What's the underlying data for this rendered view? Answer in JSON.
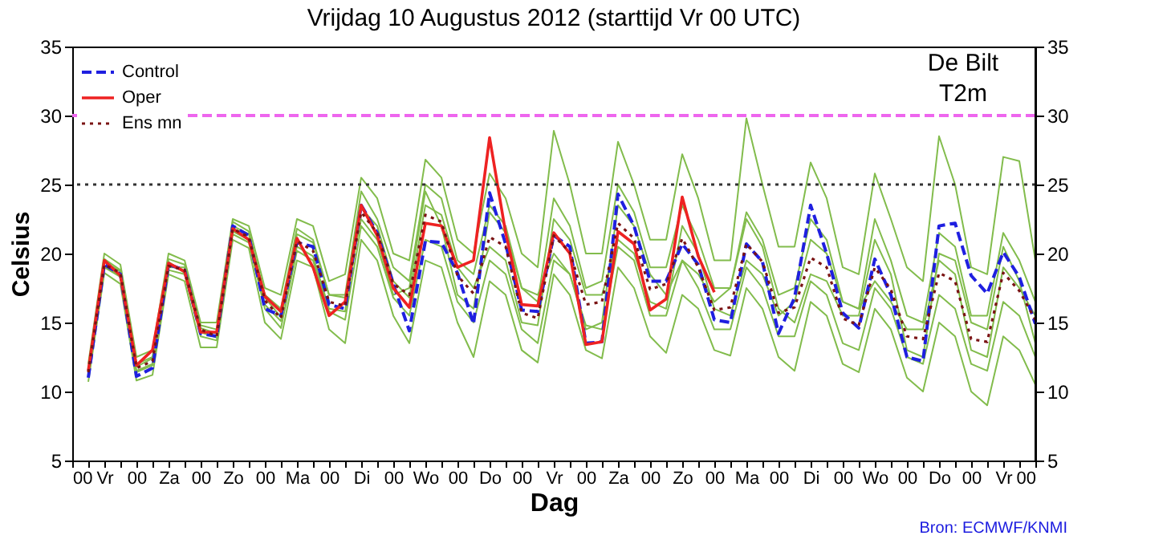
{
  "chart_data": {
    "type": "line",
    "title": "Vrijdag 10 Augustus 2012 (starttijd Vr 00 UTC)",
    "xlabel": "Dag",
    "ylabel": "Celsius",
    "annotations": [
      "De Bilt",
      "T2m",
      "Bron: ECMWF/KNMI"
    ],
    "x": [
      "2012-08-10T06:00",
      "2012-08-10T12:00",
      "2012-08-10T18:00",
      "2012-08-11T00:00",
      "2012-08-11T06:00",
      "2012-08-11T12:00",
      "2012-08-11T18:00",
      "2012-08-12T00:00",
      "2012-08-12T06:00",
      "2012-08-12T12:00",
      "2012-08-12T18:00",
      "2012-08-13T00:00",
      "2012-08-13T06:00",
      "2012-08-13T12:00",
      "2012-08-13T18:00",
      "2012-08-14T00:00",
      "2012-08-14T06:00",
      "2012-08-14T12:00",
      "2012-08-14T18:00",
      "2012-08-15T00:00",
      "2012-08-15T06:00",
      "2012-08-15T12:00",
      "2012-08-15T18:00",
      "2012-08-16T00:00",
      "2012-08-16T06:00",
      "2012-08-16T12:00",
      "2012-08-16T18:00",
      "2012-08-17T00:00",
      "2012-08-17T06:00",
      "2012-08-17T12:00",
      "2012-08-17T18:00",
      "2012-08-18T00:00",
      "2012-08-18T06:00",
      "2012-08-18T12:00",
      "2012-08-18T18:00",
      "2012-08-19T00:00",
      "2012-08-19T06:00",
      "2012-08-19T12:00",
      "2012-08-19T18:00",
      "2012-08-20T00:00",
      "2012-08-20T06:00",
      "2012-08-20T12:00",
      "2012-08-20T18:00",
      "2012-08-21T00:00",
      "2012-08-21T06:00",
      "2012-08-21T12:00",
      "2012-08-21T18:00",
      "2012-08-22T00:00",
      "2012-08-22T06:00",
      "2012-08-22T12:00",
      "2012-08-22T18:00",
      "2012-08-23T00:00",
      "2012-08-23T06:00",
      "2012-08-23T12:00",
      "2012-08-23T18:00",
      "2012-08-24T00:00",
      "2012-08-24T06:00",
      "2012-08-24T12:00",
      "2012-08-24T18:00",
      "2012-08-25T00:00"
    ],
    "xlim": [
      "2012-08-10T00:00",
      "2012-08-25T00:00"
    ],
    "xticks": [
      {
        "value": "2012-08-10T00:00",
        "label": "00"
      },
      {
        "value": "2012-08-10T06:00",
        "label": null
      },
      {
        "value": "2012-08-10T12:00",
        "label": "Vr"
      },
      {
        "value": "2012-08-10T18:00",
        "label": null
      },
      {
        "value": "2012-08-11T00:00",
        "label": "00"
      },
      {
        "value": "2012-08-11T06:00",
        "label": null
      },
      {
        "value": "2012-08-11T12:00",
        "label": "Za"
      },
      {
        "value": "2012-08-11T18:00",
        "label": null
      },
      {
        "value": "2012-08-12T00:00",
        "label": "00"
      },
      {
        "value": "2012-08-12T06:00",
        "label": null
      },
      {
        "value": "2012-08-12T12:00",
        "label": "Zo"
      },
      {
        "value": "2012-08-12T18:00",
        "label": null
      },
      {
        "value": "2012-08-13T00:00",
        "label": "00"
      },
      {
        "value": "2012-08-13T06:00",
        "label": null
      },
      {
        "value": "2012-08-13T12:00",
        "label": "Ma"
      },
      {
        "value": "2012-08-13T18:00",
        "label": null
      },
      {
        "value": "2012-08-14T00:00",
        "label": "00"
      },
      {
        "value": "2012-08-14T06:00",
        "label": null
      },
      {
        "value": "2012-08-14T12:00",
        "label": "Di"
      },
      {
        "value": "2012-08-14T18:00",
        "label": null
      },
      {
        "value": "2012-08-15T00:00",
        "label": "00"
      },
      {
        "value": "2012-08-15T06:00",
        "label": null
      },
      {
        "value": "2012-08-15T12:00",
        "label": "Wo"
      },
      {
        "value": "2012-08-15T18:00",
        "label": null
      },
      {
        "value": "2012-08-16T00:00",
        "label": "00"
      },
      {
        "value": "2012-08-16T06:00",
        "label": null
      },
      {
        "value": "2012-08-16T12:00",
        "label": "Do"
      },
      {
        "value": "2012-08-16T18:00",
        "label": null
      },
      {
        "value": "2012-08-17T00:00",
        "label": "00"
      },
      {
        "value": "2012-08-17T06:00",
        "label": null
      },
      {
        "value": "2012-08-17T12:00",
        "label": "Vr"
      },
      {
        "value": "2012-08-17T18:00",
        "label": null
      },
      {
        "value": "2012-08-18T00:00",
        "label": "00"
      },
      {
        "value": "2012-08-18T06:00",
        "label": null
      },
      {
        "value": "2012-08-18T12:00",
        "label": "Za"
      },
      {
        "value": "2012-08-18T18:00",
        "label": null
      },
      {
        "value": "2012-08-19T00:00",
        "label": "00"
      },
      {
        "value": "2012-08-19T06:00",
        "label": null
      },
      {
        "value": "2012-08-19T12:00",
        "label": "Zo"
      },
      {
        "value": "2012-08-19T18:00",
        "label": null
      },
      {
        "value": "2012-08-20T00:00",
        "label": "00"
      },
      {
        "value": "2012-08-20T06:00",
        "label": null
      },
      {
        "value": "2012-08-20T12:00",
        "label": "Ma"
      },
      {
        "value": "2012-08-20T18:00",
        "label": null
      },
      {
        "value": "2012-08-21T00:00",
        "label": "00"
      },
      {
        "value": "2012-08-21T06:00",
        "label": null
      },
      {
        "value": "2012-08-21T12:00",
        "label": "Di"
      },
      {
        "value": "2012-08-21T18:00",
        "label": null
      },
      {
        "value": "2012-08-22T00:00",
        "label": "00"
      },
      {
        "value": "2012-08-22T06:00",
        "label": null
      },
      {
        "value": "2012-08-22T12:00",
        "label": "Wo"
      },
      {
        "value": "2012-08-22T18:00",
        "label": null
      },
      {
        "value": "2012-08-23T00:00",
        "label": "00"
      },
      {
        "value": "2012-08-23T06:00",
        "label": null
      },
      {
        "value": "2012-08-23T12:00",
        "label": "Do"
      },
      {
        "value": "2012-08-23T18:00",
        "label": null
      },
      {
        "value": "2012-08-24T00:00",
        "label": "00"
      },
      {
        "value": "2012-08-24T06:00",
        "label": null
      },
      {
        "value": "2012-08-24T12:00",
        "label": "Vr"
      },
      {
        "value": "2012-08-24T18:00",
        "label": null
      },
      {
        "value": "2012-08-25T00:00",
        "label": "00"
      }
    ],
    "ylim": [
      5,
      35
    ],
    "yticks": [
      5,
      10,
      15,
      20,
      25,
      30,
      35
    ],
    "y2lim": [
      5,
      35
    ],
    "y2ticks": [
      5,
      10,
      15,
      20,
      25,
      30,
      35
    ],
    "legend": "top left",
    "grid": false,
    "ref_lines": [
      {
        "axis": "y",
        "value": 30,
        "color": "#ee66ee",
        "line_style": "dashed"
      },
      {
        "axis": "y",
        "value": 25,
        "color": "#333333",
        "line_style": "dotted"
      }
    ],
    "series": [
      {
        "color": "#82bc4c",
        "line_style": "solid",
        "values": [
          12,
          20,
          19.2,
          12.5,
          13,
          20,
          19.5,
          15,
          15,
          22.5,
          22,
          17.5,
          17,
          22.5,
          22,
          18,
          18.5,
          25.5,
          24,
          20,
          19.5,
          26.8,
          25.5,
          21,
          20,
          25.8,
          24,
          20,
          19,
          28.9,
          25,
          20,
          20,
          28.1,
          25,
          21,
          21,
          27.2,
          24,
          19.5,
          19.5,
          29.8,
          25,
          20.5,
          20.5,
          26.6,
          24,
          19,
          18.5,
          25.8,
          22.5,
          19,
          18,
          28.5,
          25,
          19,
          18.5,
          27,
          26.7,
          19.5
        ]
      },
      {
        "color": "#82bc4c",
        "line_style": "solid",
        "values": [
          10.7,
          18.6,
          17.8,
          10.8,
          11.2,
          18.5,
          18,
          13.2,
          13.2,
          21,
          20.4,
          15,
          13.8,
          19.5,
          19,
          14.5,
          13.5,
          21,
          19.5,
          15.5,
          13.5,
          19.5,
          19,
          15,
          12.5,
          18,
          17,
          13,
          12.1,
          18.5,
          17,
          13,
          12.4,
          19,
          17.5,
          14,
          12.8,
          17,
          16,
          13,
          12.6,
          17.5,
          16,
          12.5,
          11.5,
          16.5,
          15.5,
          12,
          11.4,
          16,
          14.5,
          11,
          10,
          15,
          14,
          10,
          9,
          14,
          13,
          10.5
        ]
      },
      {
        "color": "#82bc4c",
        "line_style": "solid",
        "values": [
          11.6,
          19.6,
          18.8,
          12,
          12.5,
          19.6,
          19.2,
          14.8,
          14.5,
          22.3,
          21.6,
          17,
          16,
          21.8,
          21,
          17,
          17,
          24.5,
          22.5,
          19,
          18,
          25,
          24,
          19.5,
          18.5,
          23.5,
          22,
          17.5,
          16.5,
          24,
          22,
          17.5,
          18,
          25,
          23,
          19,
          19,
          23.5,
          21,
          17.5,
          17.5,
          23,
          21,
          17,
          17.5,
          22.5,
          21,
          16.5,
          16,
          22.5,
          19.5,
          15.5,
          15,
          21.5,
          20.5,
          15.5,
          15.5,
          21.5,
          19.5,
          16.5
        ]
      },
      {
        "color": "#82bc4c",
        "line_style": "solid",
        "values": [
          11.2,
          19,
          18.3,
          11.4,
          11.9,
          18.8,
          18.5,
          14,
          13.7,
          21.4,
          20.8,
          16,
          14.6,
          20.2,
          19.5,
          15.8,
          15.2,
          22,
          20.5,
          16.8,
          15.5,
          21,
          20.5,
          16.5,
          15,
          19.5,
          18.5,
          14.5,
          13.5,
          19.5,
          18.5,
          14.8,
          14.5,
          20.5,
          19.5,
          15.5,
          15.5,
          19.5,
          17.5,
          14.5,
          14.5,
          19,
          17.5,
          14,
          14,
          18,
          17,
          13.5,
          13,
          17.5,
          16,
          12.5,
          12,
          17,
          16,
          12,
          11.5,
          16.5,
          15.5,
          12.5
        ]
      },
      {
        "color": "#82bc4c",
        "line_style": "solid",
        "values": [
          11.3,
          19.4,
          18.7,
          11.8,
          12.4,
          19.4,
          18.6,
          14.6,
          14.2,
          21.6,
          21,
          16.3,
          15.1,
          21.4,
          20.8,
          17,
          16.8,
          22.5,
          21,
          17,
          17.5,
          24.5,
          22,
          17,
          16,
          23,
          21.5,
          17.5,
          17,
          20,
          18.5,
          14.5,
          15,
          23.5,
          22,
          18.5,
          17,
          19.5,
          18.5,
          16.5,
          17.5,
          22.5,
          20.5,
          16,
          15,
          18.5,
          18,
          15.5,
          15.5,
          21,
          18.5,
          13,
          12.5,
          20,
          19.5,
          15,
          14.5,
          20.5,
          18,
          13.5
        ]
      },
      {
        "color": "#82bc4c",
        "line_style": "solid",
        "values": [
          11.5,
          19.1,
          18.4,
          11.5,
          12,
          19,
          19,
          14.3,
          13.9,
          22,
          21.4,
          16.8,
          15.4,
          20.5,
          19.8,
          16,
          15.8,
          23.3,
          22,
          18,
          16.8,
          23.5,
          22.8,
          19,
          17.5,
          20.5,
          19.5,
          15,
          14.8,
          22.5,
          21,
          17,
          17,
          21,
          20,
          16.5,
          16,
          22,
          20,
          16,
          15.5,
          19.5,
          18.5,
          15.5,
          16.5,
          21,
          20,
          16.5,
          16,
          18,
          16.5,
          14.5,
          14.5,
          19.5,
          18.5,
          13,
          12.5,
          19,
          17.5,
          15.5
        ]
      },
      {
        "name": "Control",
        "color": "#1f1fe0",
        "line_style": "dashed",
        "values": [
          11,
          19.2,
          18.5,
          11.1,
          11.7,
          19.2,
          18.8,
          14.2,
          14,
          22,
          21.3,
          16,
          15.5,
          20.8,
          20.5,
          16.3,
          16,
          23.5,
          21.5,
          17.8,
          14.4,
          20.9,
          20.8,
          18.6,
          14.9,
          24.4,
          20.7,
          15.9,
          15.8,
          21.3,
          20.5,
          13.5,
          13.6,
          24.3,
          22,
          18,
          18,
          20.7,
          19.2,
          15.2,
          15,
          20.7,
          19.4,
          14.2,
          16.8,
          23.5,
          20,
          15.7,
          14.6,
          19.6,
          17,
          12.5,
          12.2,
          22,
          22.2,
          18.4,
          17.1,
          20.1,
          18.3,
          14.9
        ]
      },
      {
        "name": "Oper",
        "color": "#ee2222",
        "line_style": "solid",
        "x": [
          "2012-08-10T06:00",
          "2012-08-10T12:00",
          "2012-08-10T18:00",
          "2012-08-11T00:00",
          "2012-08-11T06:00",
          "2012-08-11T12:00",
          "2012-08-11T18:00",
          "2012-08-12T00:00",
          "2012-08-12T06:00",
          "2012-08-12T12:00",
          "2012-08-12T18:00",
          "2012-08-13T00:00",
          "2012-08-13T06:00",
          "2012-08-13T12:00",
          "2012-08-13T18:00",
          "2012-08-14T00:00",
          "2012-08-14T06:00",
          "2012-08-14T12:00",
          "2012-08-14T18:00",
          "2012-08-15T00:00",
          "2012-08-15T06:00",
          "2012-08-15T12:00",
          "2012-08-15T18:00",
          "2012-08-16T00:00",
          "2012-08-16T06:00",
          "2012-08-16T12:00",
          "2012-08-16T18:00",
          "2012-08-17T00:00",
          "2012-08-17T06:00",
          "2012-08-17T12:00",
          "2012-08-17T18:00",
          "2012-08-18T00:00",
          "2012-08-18T06:00",
          "2012-08-18T12:00",
          "2012-08-18T18:00",
          "2012-08-19T00:00",
          "2012-08-19T06:00",
          "2012-08-19T12:00",
          "2012-08-19T18:00",
          "2012-08-20T00:00"
        ],
        "values": [
          11.5,
          19.5,
          18.4,
          11.9,
          13,
          19.3,
          18.7,
          14.3,
          14.3,
          21.8,
          21,
          16.9,
          15.8,
          21.1,
          19,
          15.5,
          16.5,
          23.5,
          21.3,
          17.5,
          16.1,
          22.2,
          22,
          19,
          19.5,
          28.4,
          21.5,
          16.3,
          16.2,
          21.5,
          20,
          13.4,
          13.6,
          21.6,
          20.7,
          15.9,
          16.7,
          24.1,
          19.8,
          17.2
        ]
      },
      {
        "name": "Ens mn",
        "color": "#7a1414",
        "line_style": "dotted",
        "values": [
          11.4,
          19.2,
          18.6,
          11.7,
          12.2,
          19.1,
          18.8,
          14.5,
          14,
          21.8,
          21.2,
          16.6,
          15.3,
          20.9,
          20.2,
          16.5,
          16.2,
          23,
          21.5,
          17.8,
          17,
          22.8,
          22.3,
          18.4,
          17.1,
          21.2,
          20.5,
          15.7,
          15.3,
          21.3,
          20.1,
          16.3,
          16.5,
          22.2,
          21.1,
          17.4,
          17.8,
          21.1,
          19,
          15.9,
          16.1,
          20.7,
          19.4,
          15.7,
          16.1,
          19.7,
          19,
          15.3,
          14.8,
          19,
          17.4,
          14,
          13.8,
          18.6,
          18,
          13.8,
          13.6,
          18.6,
          17.3,
          15.2
        ]
      }
    ]
  }
}
